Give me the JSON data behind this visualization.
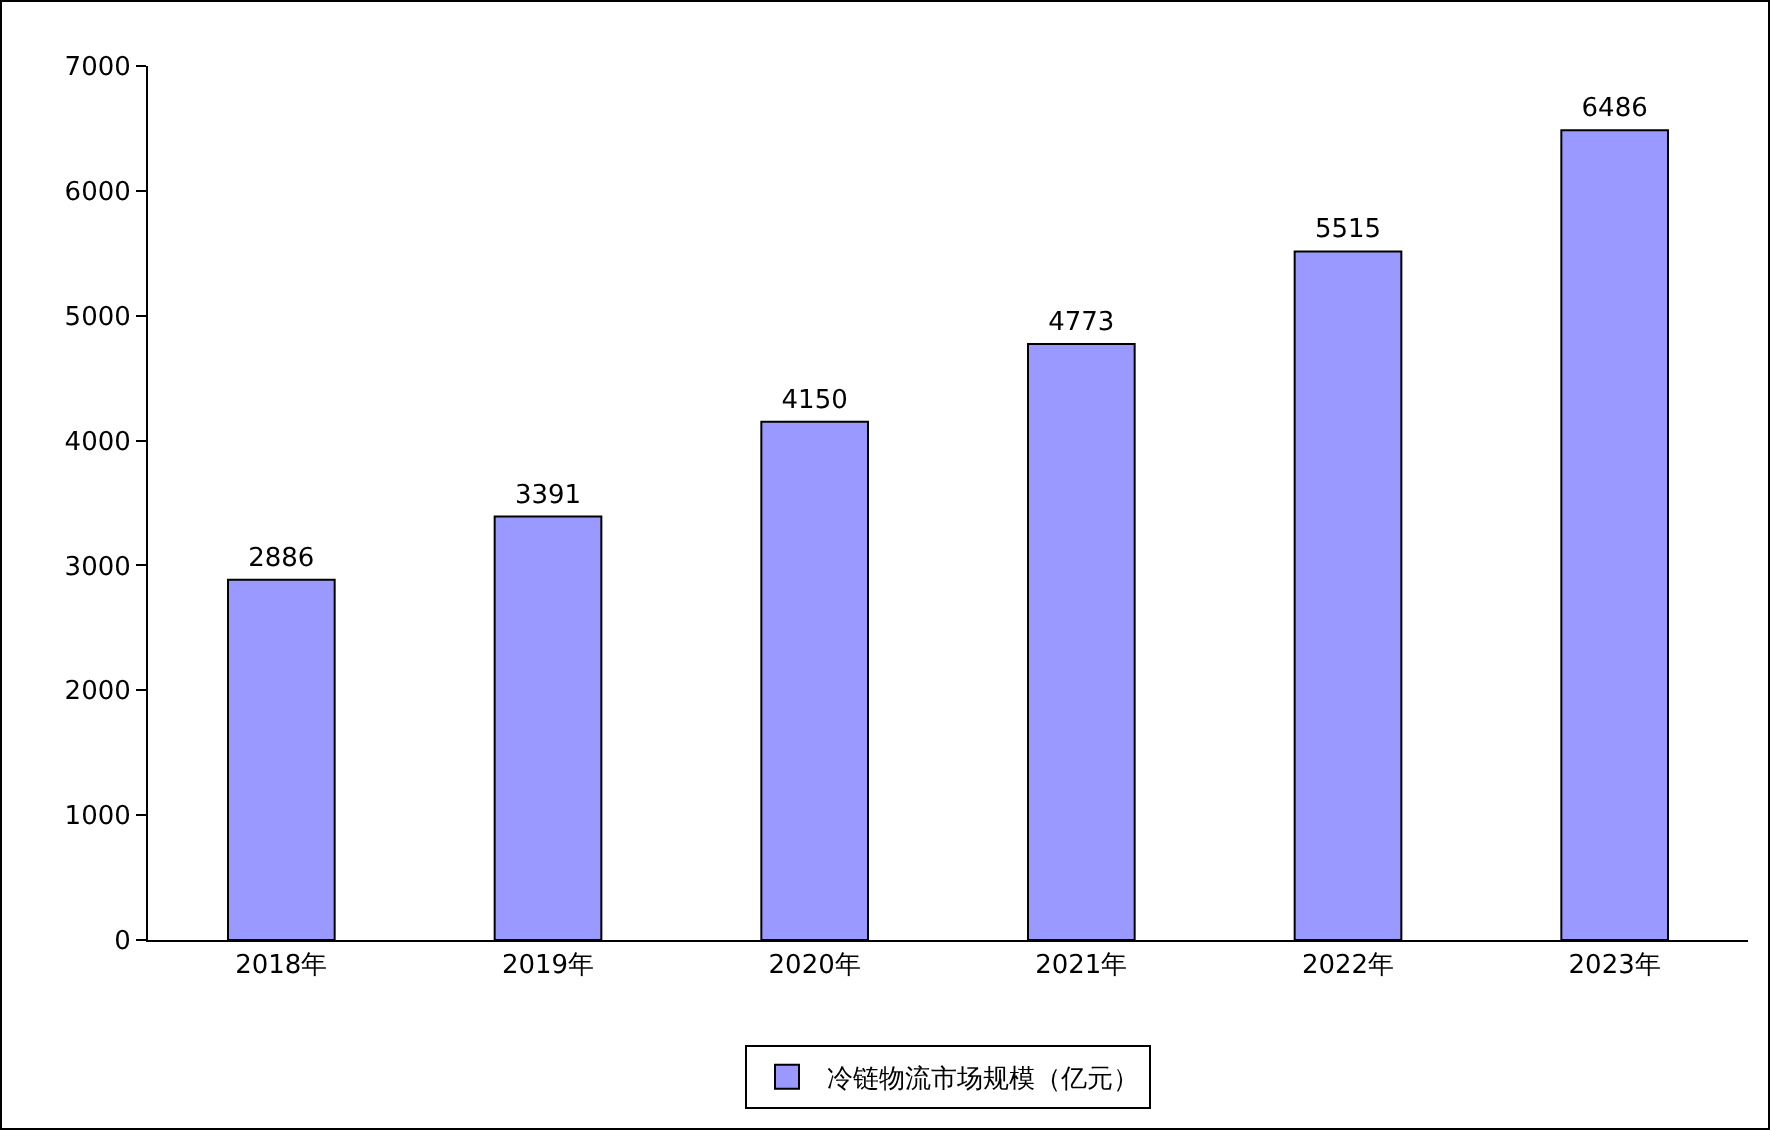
{
  "chart_data": {
    "type": "bar",
    "categories": [
      "2018年",
      "2019年",
      "2020年",
      "2021年",
      "2022年",
      "2023年"
    ],
    "series": [
      {
        "name": "冷链物流市场规模（亿元）",
        "color": "#9999ff",
        "values": [
          2886,
          3391,
          4150,
          4773,
          5515,
          6486
        ]
      }
    ],
    "ylim": [
      0,
      7000
    ],
    "yticks": [
      0,
      1000,
      2000,
      3000,
      4000,
      5000,
      6000,
      7000
    ],
    "grid": false,
    "legend": "bottom",
    "data_labels": true
  }
}
